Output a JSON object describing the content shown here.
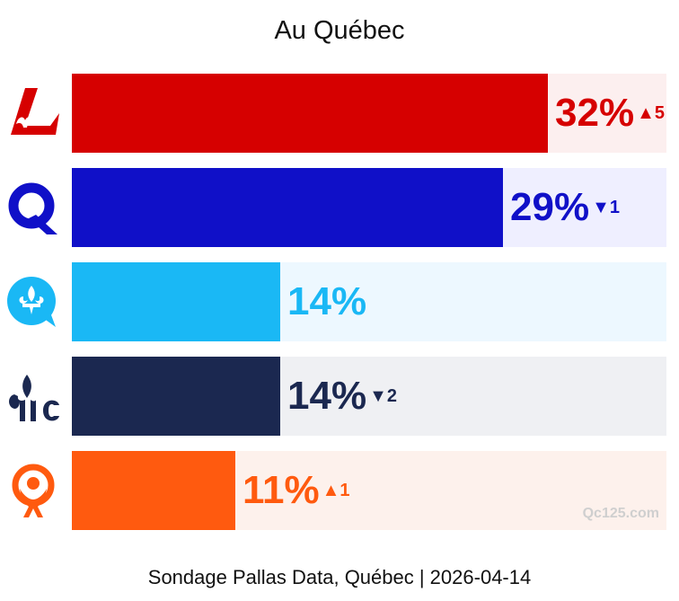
{
  "chart_data": {
    "type": "bar",
    "orientation": "horizontal",
    "title": "Au Québec",
    "categories": [
      "PLQ",
      "PQ",
      "QS",
      "CAQ",
      "PCQ"
    ],
    "values": [
      32,
      29,
      14,
      14,
      11
    ],
    "value_labels": [
      "32%",
      "29%",
      "14%",
      "14%",
      "11%"
    ],
    "changes": [
      {
        "direction": "up",
        "symbol": "▲",
        "value": "5"
      },
      {
        "direction": "down",
        "symbol": "▼",
        "value": "1"
      },
      {
        "direction": "none",
        "symbol": "",
        "value": ""
      },
      {
        "direction": "down",
        "symbol": "▼",
        "value": "2"
      },
      {
        "direction": "up",
        "symbol": "▲",
        "value": "1"
      }
    ],
    "colors": [
      "#d60000",
      "#1010c8",
      "#1ab8f5",
      "#1b2850",
      "#ff5a0f"
    ],
    "track_colors": [
      "#fcefef",
      "#efefff",
      "#edf8ff",
      "#eff0f3",
      "#fdf1ec"
    ],
    "xlim": [
      0,
      40
    ],
    "source": "Sondage Pallas Data, Québec | 2026-04-14",
    "watermark": "Qc125.com"
  }
}
